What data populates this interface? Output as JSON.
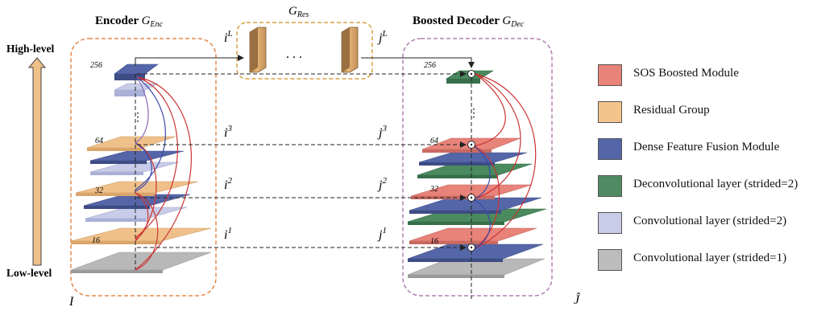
{
  "encoder": {
    "title": "Encoder",
    "sub_main": "G",
    "sub_script": "Enc"
  },
  "residual": {
    "title_main": "G",
    "title_script": "Res"
  },
  "decoder": {
    "title": "Boosted Decoder",
    "sub_main": "G",
    "sub_script": "Dec"
  },
  "axis": {
    "top": "High-level",
    "bottom": "Low-level"
  },
  "encoder_channels": [
    "256",
    "64",
    "32",
    "16"
  ],
  "decoder_channels": [
    "256",
    "64",
    "32",
    "16"
  ],
  "skip_labels_i": [
    {
      "main": "i",
      "sup": "L"
    },
    {
      "main": "i",
      "sup": "3"
    },
    {
      "main": "i",
      "sup": "2"
    },
    {
      "main": "i",
      "sup": "1"
    }
  ],
  "skip_labels_j": [
    {
      "main": "j",
      "sup": "L"
    },
    {
      "main": "j",
      "sup": "3"
    },
    {
      "main": "j",
      "sup": "2"
    },
    {
      "main": "j",
      "sup": "1"
    }
  ],
  "dots": ". . .",
  "input_label": "I",
  "output_label": "Ĵ",
  "colors": {
    "sos": "#e8837a",
    "residual": "#f0c08a",
    "dff": "#5566a8",
    "deconv": "#4a8a5e",
    "conv2": "#c8cce8",
    "conv1": "#b8b8b8",
    "encoder_border": "#e5884a",
    "residual_border": "#d8a040",
    "decoder_border": "#b080b0",
    "arrow_fill": "#f0c08a"
  },
  "legend": [
    {
      "label": "SOS Boosted Module",
      "color": "#e8837a"
    },
    {
      "label": "Residual Group",
      "color": "#f3c58d"
    },
    {
      "label": "Dense Feature Fusion Module",
      "color": "#5566a8"
    },
    {
      "label": "Deconvolutional layer (strided=2)",
      "color": "#4f8a62"
    },
    {
      "label": "Convolutional layer (strided=2)",
      "color": "#c8cce8"
    },
    {
      "label": "Convolutional layer (strided=1)",
      "color": "#bcbcbc"
    }
  ]
}
